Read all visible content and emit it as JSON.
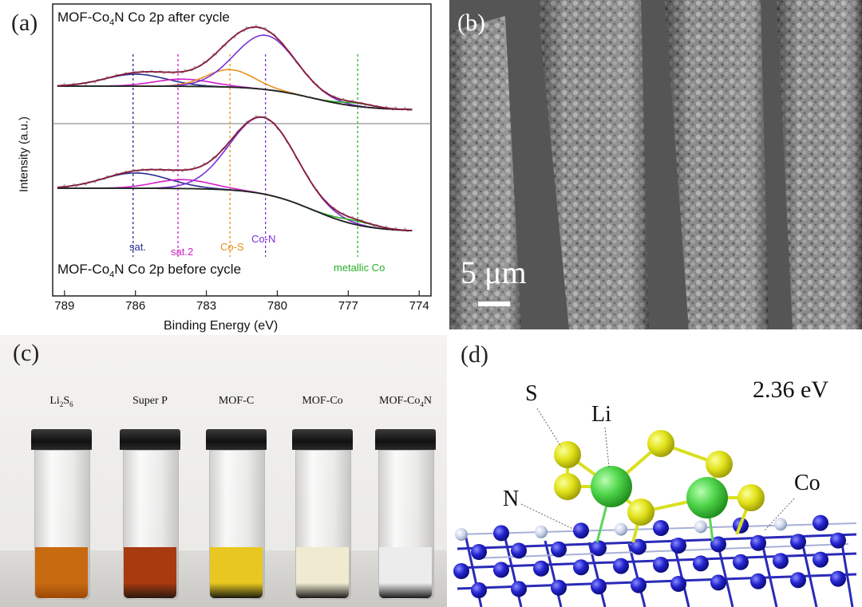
{
  "panel_a": {
    "label": "(a)",
    "top_title": "MOF-Co4N Co 2p after cycle",
    "top_title_parts": {
      "pre": "MOF-Co",
      "sub": "4",
      "post": "N Co 2p after cycle"
    },
    "bottom_title_parts": {
      "pre": "MOF-Co",
      "sub": "4",
      "post": "N Co 2p before cycle"
    },
    "xlabel": "Binding Energy (eV)",
    "ylabel": "Intensity (a.u.)",
    "peak_labels": {
      "sat": "sat.",
      "sat2": "sat.2",
      "cos": "Co-S",
      "con": "Co-N",
      "metallic": "metallic Co"
    },
    "colors": {
      "sat": "#2b2b8f",
      "sat2": "#d020c8",
      "cos": "#e8901a",
      "con": "#7a30d8",
      "metallic": "#28b028",
      "envelope": "#8a1a3a",
      "background": "#222222"
    }
  },
  "chart_data": {
    "type": "line",
    "title": "",
    "xlabel": "Binding Energy (eV)",
    "ylabel": "Intensity (a.u.)",
    "xlim": [
      789.5,
      773.5
    ],
    "x_ticks": [
      789,
      786,
      783,
      780,
      777,
      774
    ],
    "reference_lines": [
      {
        "name": "sat.",
        "x": 786.1
      },
      {
        "name": "sat.2",
        "x": 784.2
      },
      {
        "name": "Co-S",
        "x": 782.0
      },
      {
        "name": "Co-N",
        "x": 780.5
      },
      {
        "name": "metallic Co",
        "x": 776.6
      }
    ],
    "series": [
      {
        "group": "after cycle",
        "values_x": [
          789,
          786,
          784,
          782,
          780.8,
          779,
          777,
          774
        ],
        "values_y": [
          0.52,
          0.6,
          0.56,
          0.72,
          0.88,
          0.55,
          0.28,
          0.22
        ]
      },
      {
        "group": "before cycle",
        "values_x": [
          789,
          786,
          784,
          782,
          780.5,
          779,
          777,
          774
        ],
        "values_y": [
          0.28,
          0.38,
          0.34,
          0.56,
          0.78,
          0.52,
          0.18,
          0.12
        ]
      }
    ]
  },
  "panel_b": {
    "label": "(b)",
    "scale_text": "5 μm"
  },
  "panel_c": {
    "label": "(c)",
    "vials": [
      {
        "pre": "Li",
        "sub1": "2",
        "mid": "S",
        "sub2": "6",
        "post": "",
        "liquid": "#c86a10",
        "bottom": "#9a4a08"
      },
      {
        "pre": "Super P",
        "sub1": "",
        "mid": "",
        "sub2": "",
        "post": "",
        "liquid": "#a83a10",
        "bottom": "#2a1a10"
      },
      {
        "pre": "MOF-C",
        "sub1": "",
        "mid": "",
        "sub2": "",
        "post": "",
        "liquid": "#e8c820",
        "bottom": "#1a1a10"
      },
      {
        "pre": "MOF-Co",
        "sub1": "",
        "mid": "",
        "sub2": "",
        "post": "",
        "liquid": "#f0ead0",
        "bottom": "#1a1a18"
      },
      {
        "pre": "MOF-Co",
        "sub1": "4",
        "mid": "N",
        "sub2": "",
        "post": "",
        "liquid": "#ececec",
        "bottom": "#1a1a1a"
      }
    ]
  },
  "panel_d": {
    "label": "(d)",
    "energy": "2.36 eV",
    "atoms": {
      "s": "S",
      "li": "Li",
      "n": "N",
      "co": "Co"
    }
  }
}
